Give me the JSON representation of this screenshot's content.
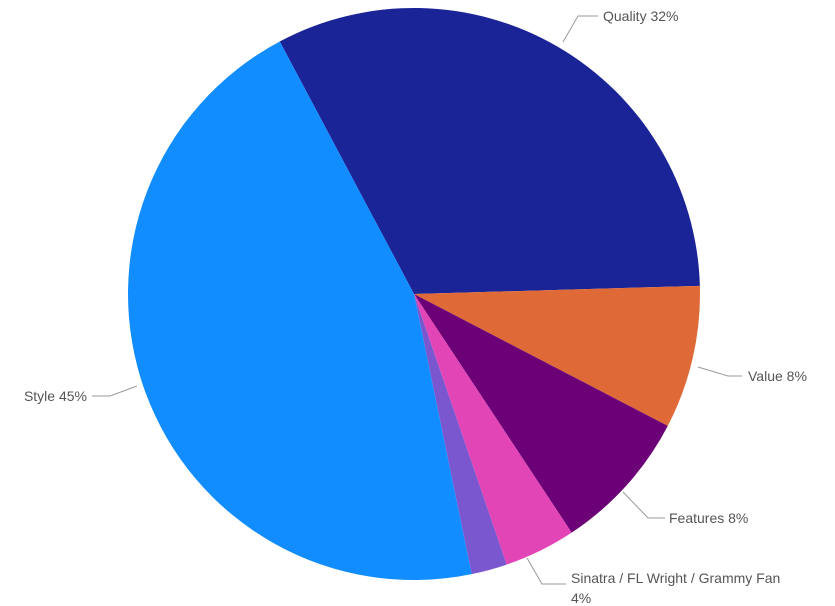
{
  "chart_data": {
    "type": "pie",
    "slices": [
      {
        "label": "Quality",
        "value": 32,
        "label_text": "Quality 32%",
        "color": "#1b2497"
      },
      {
        "label": "Value",
        "value": 8,
        "label_text": "Value 8%",
        "color": "#e06a37"
      },
      {
        "label": "Features",
        "value": 8,
        "label_text": "Features 8%",
        "color": "#6b0077"
      },
      {
        "label": "Sinatra / FL Wright / Grammy Fan",
        "value": 4,
        "label_text": [
          "Sinatra / FL Wright / Grammy Fan",
          "4%"
        ],
        "color": "#e245b5"
      },
      {
        "label": "",
        "value": 2,
        "label_text": "",
        "color": "#7b57cf"
      },
      {
        "label": "Style",
        "value": 45,
        "label_text": "Style 45%",
        "color": "#118dff"
      }
    ]
  }
}
